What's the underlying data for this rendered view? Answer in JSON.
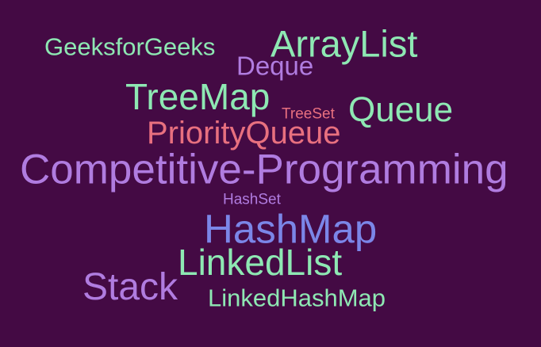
{
  "words": [
    {
      "text": "GeeksforGeeks",
      "color": "#8ee8b3"
    },
    {
      "text": "ArrayList",
      "color": "#8ee8b3"
    },
    {
      "text": "Deque",
      "color": "#b07ce0"
    },
    {
      "text": "TreeMap",
      "color": "#8ee8b3"
    },
    {
      "text": "TreeSet",
      "color": "#e8707f"
    },
    {
      "text": "Queue",
      "color": "#8ee8b3"
    },
    {
      "text": "PriorityQueue",
      "color": "#e8707f"
    },
    {
      "text": "Competitive-Programming",
      "color": "#b07ce0"
    },
    {
      "text": "HashSet",
      "color": "#b07ce0"
    },
    {
      "text": "HashMap",
      "color": "#7b86e8"
    },
    {
      "text": "LinkedList",
      "color": "#8ee8b3"
    },
    {
      "text": "Stack",
      "color": "#b07ce0"
    },
    {
      "text": "LinkedHashMap",
      "color": "#8ee8b3"
    }
  ]
}
